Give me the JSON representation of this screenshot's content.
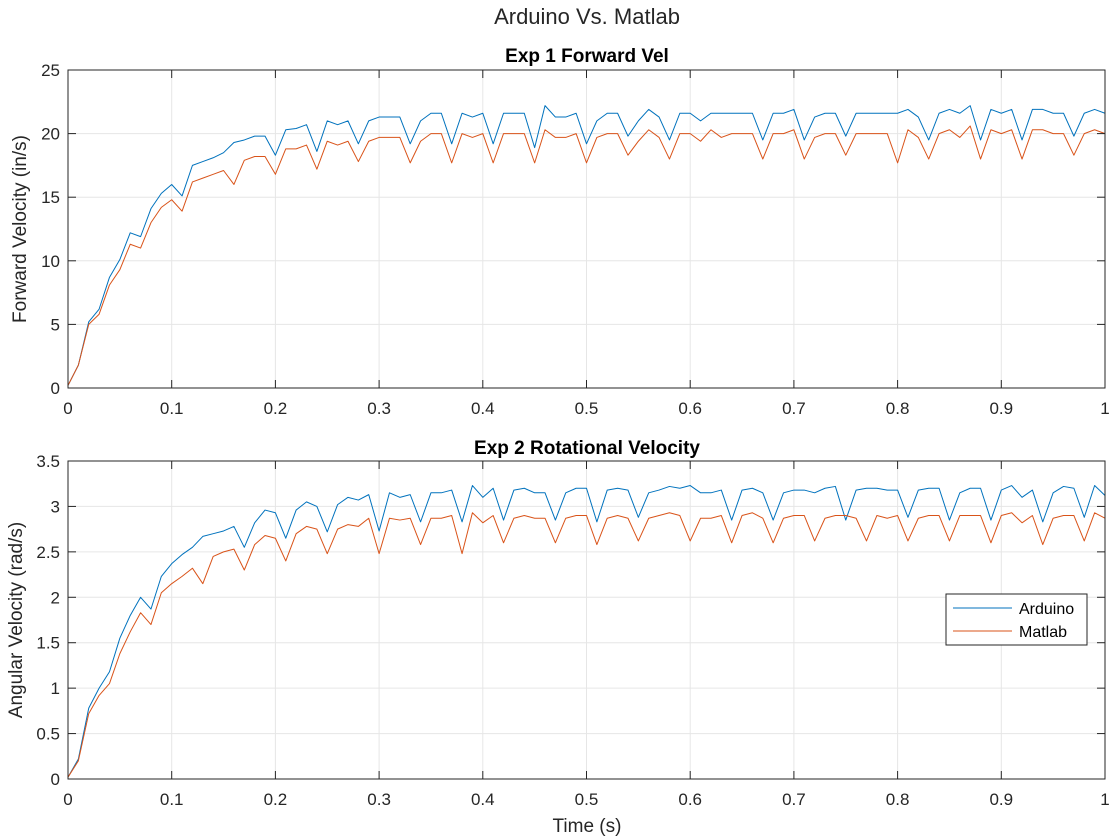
{
  "figure": {
    "title": "Arduino Vs. Matlab"
  },
  "chart_data": [
    {
      "type": "line",
      "title": "Exp 1 Forward Vel",
      "xlabel": "",
      "ylabel": "Forward Velocity (in/s)",
      "xlim": [
        0,
        1
      ],
      "ylim": [
        0,
        25
      ],
      "xticks": [
        "0",
        "0.1",
        "0.2",
        "0.3",
        "0.4",
        "0.5",
        "0.6",
        "0.7",
        "0.8",
        "0.9",
        "1"
      ],
      "yticks": [
        "0",
        "5",
        "10",
        "15",
        "20",
        "25"
      ],
      "grid": true,
      "x": [
        0,
        0.01,
        0.02,
        0.03,
        0.04,
        0.05,
        0.06,
        0.07,
        0.08,
        0.09,
        0.1,
        0.11,
        0.12,
        0.13,
        0.14,
        0.15,
        0.16,
        0.17,
        0.18,
        0.19,
        0.2,
        0.21,
        0.22,
        0.23,
        0.24,
        0.25,
        0.26,
        0.27,
        0.28,
        0.29,
        0.3,
        0.31,
        0.32,
        0.33,
        0.34,
        0.35,
        0.36,
        0.37,
        0.38,
        0.39,
        0.4,
        0.41,
        0.42,
        0.43,
        0.44,
        0.45,
        0.46,
        0.47,
        0.48,
        0.49,
        0.5,
        0.51,
        0.52,
        0.53,
        0.54,
        0.55,
        0.56,
        0.57,
        0.58,
        0.59,
        0.6,
        0.61,
        0.62,
        0.63,
        0.64,
        0.65,
        0.66,
        0.67,
        0.68,
        0.69,
        0.7,
        0.71,
        0.72,
        0.73,
        0.74,
        0.75,
        0.76,
        0.77,
        0.78,
        0.79,
        0.8,
        0.81,
        0.82,
        0.83,
        0.84,
        0.85,
        0.86,
        0.87,
        0.88,
        0.89,
        0.9,
        0.91,
        0.92,
        0.93,
        0.94,
        0.95,
        0.96,
        0.97,
        0.98,
        0.99,
        1.0
      ],
      "series": [
        {
          "name": "Arduino",
          "color": "#0072BD",
          "values": [
            0.2,
            1.8,
            5.2,
            6.2,
            8.7,
            10.1,
            12.2,
            11.9,
            14.1,
            15.3,
            16.0,
            15.1,
            17.5,
            17.8,
            18.1,
            18.5,
            19.3,
            19.5,
            19.8,
            19.8,
            18.3,
            20.3,
            20.4,
            20.7,
            18.6,
            21.0,
            20.7,
            21.0,
            19.2,
            21.0,
            21.3,
            21.3,
            21.3,
            19.2,
            21.0,
            21.6,
            21.6,
            19.2,
            21.6,
            21.3,
            21.6,
            19.2,
            21.6,
            21.6,
            21.6,
            18.9,
            22.2,
            21.3,
            21.3,
            21.6,
            19.2,
            21.0,
            21.6,
            21.6,
            19.8,
            21.0,
            21.9,
            21.3,
            19.5,
            21.6,
            21.6,
            21.0,
            21.6,
            21.6,
            21.6,
            21.6,
            21.6,
            19.5,
            21.6,
            21.6,
            21.9,
            19.5,
            21.3,
            21.6,
            21.6,
            19.8,
            21.6,
            21.6,
            21.6,
            21.6,
            21.6,
            21.9,
            21.3,
            19.5,
            21.6,
            21.9,
            21.6,
            22.2,
            19.5,
            21.9,
            21.6,
            21.9,
            19.5,
            21.9,
            21.9,
            21.6,
            21.6,
            19.8,
            21.6,
            21.9,
            21.6
          ]
        },
        {
          "name": "Matlab",
          "color": "#D95319",
          "values": [
            0.2,
            1.8,
            5.0,
            5.8,
            8.1,
            9.3,
            11.3,
            11.0,
            13.0,
            14.2,
            14.8,
            13.9,
            16.2,
            16.5,
            16.8,
            17.1,
            16.0,
            17.9,
            18.2,
            18.2,
            16.8,
            18.8,
            18.8,
            19.1,
            17.2,
            19.4,
            19.1,
            19.4,
            17.8,
            19.4,
            19.7,
            19.7,
            19.7,
            17.7,
            19.4,
            20.0,
            20.0,
            17.7,
            20.0,
            19.7,
            20.0,
            17.7,
            20.0,
            20.0,
            20.0,
            17.7,
            20.3,
            19.7,
            19.7,
            20.0,
            17.7,
            19.7,
            20.0,
            20.0,
            18.3,
            19.4,
            20.3,
            19.7,
            18.0,
            20.0,
            20.0,
            19.4,
            20.3,
            19.7,
            20.0,
            20.0,
            20.0,
            18.0,
            20.0,
            20.0,
            20.3,
            18.0,
            19.7,
            20.0,
            20.0,
            18.3,
            20.0,
            20.0,
            20.0,
            20.0,
            17.7,
            20.3,
            19.7,
            18.0,
            20.0,
            20.3,
            19.7,
            20.6,
            18.0,
            20.3,
            20.0,
            20.3,
            18.0,
            20.3,
            20.3,
            20.0,
            20.0,
            18.3,
            20.0,
            20.3,
            20.0
          ]
        }
      ]
    },
    {
      "type": "line",
      "title": "Exp 2 Rotational Velocity",
      "xlabel": "Time (s)",
      "ylabel": "Angular Velocity (rad/s)",
      "xlim": [
        0,
        1
      ],
      "ylim": [
        0,
        3.5
      ],
      "xticks": [
        "0",
        "0.1",
        "0.2",
        "0.3",
        "0.4",
        "0.5",
        "0.6",
        "0.7",
        "0.8",
        "0.9",
        "1"
      ],
      "yticks": [
        "0",
        "0.5",
        "1",
        "1.5",
        "2",
        "2.5",
        "3",
        "3.5"
      ],
      "grid": true,
      "legend": {
        "placement": "right",
        "entries": [
          "Arduino",
          "Matlab"
        ]
      },
      "x": [
        0,
        0.01,
        0.02,
        0.03,
        0.04,
        0.05,
        0.06,
        0.07,
        0.08,
        0.09,
        0.1,
        0.11,
        0.12,
        0.13,
        0.14,
        0.15,
        0.16,
        0.17,
        0.18,
        0.19,
        0.2,
        0.21,
        0.22,
        0.23,
        0.24,
        0.25,
        0.26,
        0.27,
        0.28,
        0.29,
        0.3,
        0.31,
        0.32,
        0.33,
        0.34,
        0.35,
        0.36,
        0.37,
        0.38,
        0.39,
        0.4,
        0.41,
        0.42,
        0.43,
        0.44,
        0.45,
        0.46,
        0.47,
        0.48,
        0.49,
        0.5,
        0.51,
        0.52,
        0.53,
        0.54,
        0.55,
        0.56,
        0.57,
        0.58,
        0.59,
        0.6,
        0.61,
        0.62,
        0.63,
        0.64,
        0.65,
        0.66,
        0.67,
        0.68,
        0.69,
        0.7,
        0.71,
        0.72,
        0.73,
        0.74,
        0.75,
        0.76,
        0.77,
        0.78,
        0.79,
        0.8,
        0.81,
        0.82,
        0.83,
        0.84,
        0.85,
        0.86,
        0.87,
        0.88,
        0.89,
        0.9,
        0.91,
        0.92,
        0.93,
        0.94,
        0.95,
        0.96,
        0.97,
        0.98,
        0.99,
        1.0
      ],
      "series": [
        {
          "name": "Arduino",
          "color": "#0072BD",
          "values": [
            0.02,
            0.22,
            0.78,
            1.0,
            1.18,
            1.55,
            1.8,
            2.0,
            1.87,
            2.23,
            2.37,
            2.47,
            2.55,
            2.67,
            2.7,
            2.73,
            2.78,
            2.55,
            2.82,
            2.96,
            2.93,
            2.65,
            2.96,
            3.05,
            3.0,
            2.72,
            3.02,
            3.1,
            3.07,
            3.13,
            2.73,
            3.15,
            3.1,
            3.13,
            2.83,
            3.15,
            3.15,
            3.18,
            2.83,
            3.23,
            3.1,
            3.2,
            2.85,
            3.18,
            3.2,
            3.15,
            3.15,
            2.85,
            3.15,
            3.2,
            3.2,
            2.83,
            3.18,
            3.2,
            3.18,
            2.88,
            3.15,
            3.18,
            3.22,
            3.2,
            3.23,
            3.15,
            3.15,
            3.18,
            2.85,
            3.18,
            3.2,
            3.15,
            2.85,
            3.15,
            3.18,
            3.18,
            3.15,
            3.2,
            3.22,
            2.85,
            3.18,
            3.2,
            3.2,
            3.18,
            3.18,
            2.88,
            3.18,
            3.2,
            3.2,
            2.85,
            3.15,
            3.2,
            3.2,
            2.85,
            3.18,
            3.23,
            3.1,
            3.18,
            2.83,
            3.15,
            3.22,
            3.2,
            2.88,
            3.23,
            3.12
          ]
        },
        {
          "name": "Matlab",
          "color": "#D95319",
          "values": [
            0.02,
            0.2,
            0.72,
            0.92,
            1.05,
            1.38,
            1.62,
            1.83,
            1.7,
            2.05,
            2.15,
            2.23,
            2.32,
            2.15,
            2.45,
            2.5,
            2.53,
            2.3,
            2.58,
            2.68,
            2.65,
            2.4,
            2.7,
            2.78,
            2.75,
            2.48,
            2.75,
            2.8,
            2.78,
            2.87,
            2.48,
            2.87,
            2.85,
            2.87,
            2.58,
            2.87,
            2.87,
            2.9,
            2.48,
            2.93,
            2.82,
            2.9,
            2.6,
            2.87,
            2.9,
            2.87,
            2.87,
            2.6,
            2.87,
            2.9,
            2.9,
            2.58,
            2.87,
            2.9,
            2.87,
            2.62,
            2.87,
            2.9,
            2.93,
            2.9,
            2.62,
            2.87,
            2.87,
            2.9,
            2.6,
            2.9,
            2.93,
            2.87,
            2.6,
            2.87,
            2.9,
            2.9,
            2.62,
            2.87,
            2.9,
            2.9,
            2.87,
            2.62,
            2.9,
            2.87,
            2.9,
            2.62,
            2.87,
            2.9,
            2.9,
            2.62,
            2.9,
            2.9,
            2.9,
            2.6,
            2.9,
            2.93,
            2.82,
            2.9,
            2.58,
            2.87,
            2.9,
            2.9,
            2.62,
            2.93,
            2.87
          ]
        }
      ]
    }
  ]
}
